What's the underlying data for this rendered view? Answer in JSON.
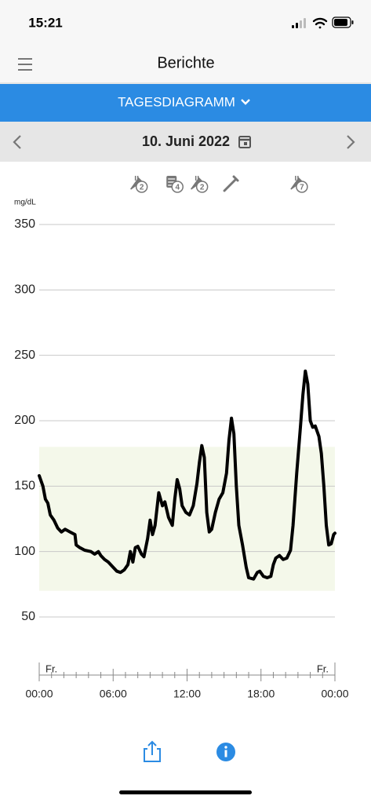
{
  "status_bar": {
    "time": "15:21"
  },
  "nav": {
    "title": "Berichte"
  },
  "view_selector": {
    "label": "TAGESDIAGRAMM"
  },
  "date_bar": {
    "date": "10. Juni 2022"
  },
  "chart_data": {
    "type": "line",
    "y_label": "mg/dL",
    "ylim": [
      50,
      350
    ],
    "yticks": [
      50,
      100,
      150,
      200,
      250,
      300,
      350
    ],
    "grid": true,
    "xlim": [
      0,
      24
    ],
    "xticks": [
      {
        "value": 0,
        "label": "00:00"
      },
      {
        "value": 6,
        "label": "06:00"
      },
      {
        "value": 12,
        "label": "12:00"
      },
      {
        "value": 18,
        "label": "18:00"
      },
      {
        "value": 24,
        "label": "00:00"
      }
    ],
    "xminor_ticks": [
      1,
      2,
      3,
      4,
      5,
      7,
      8,
      9,
      10,
      11,
      13,
      14,
      15,
      16,
      17,
      19,
      20,
      21,
      22,
      23
    ],
    "x_end_labels": [
      "Fr.",
      "Fr."
    ],
    "target_range": [
      70,
      180
    ],
    "target_color": "#f4f8ea",
    "events": [
      {
        "x": 8.0,
        "kind": "meal",
        "count": 2
      },
      {
        "x": 10.9,
        "kind": "note",
        "count": 4
      },
      {
        "x": 12.9,
        "kind": "meal",
        "count": 2
      },
      {
        "x": 15.6,
        "kind": "insulin"
      },
      {
        "x": 21.0,
        "kind": "meal",
        "count": 7
      }
    ],
    "x": [
      0.0,
      0.3,
      0.5,
      0.7,
      0.9,
      1.2,
      1.5,
      1.8,
      2.1,
      2.5,
      2.9,
      3.0,
      3.3,
      3.7,
      4.2,
      4.5,
      4.8,
      5.0,
      5.3,
      5.6,
      6.0,
      6.3,
      6.6,
      6.9,
      7.2,
      7.4,
      7.6,
      7.8,
      8.0,
      8.3,
      8.5,
      8.8,
      9.0,
      9.2,
      9.4,
      9.7,
      10.0,
      10.2,
      10.5,
      10.8,
      11.0,
      11.2,
      11.4,
      11.6,
      11.9,
      12.2,
      12.5,
      12.8,
      13.0,
      13.2,
      13.4,
      13.6,
      13.8,
      14.0,
      14.3,
      14.6,
      14.9,
      15.2,
      15.4,
      15.6,
      15.8,
      16.0,
      16.2,
      16.5,
      16.8,
      17.0,
      17.4,
      17.7,
      17.9,
      18.2,
      18.5,
      18.8,
      19.0,
      19.2,
      19.5,
      19.8,
      20.1,
      20.4,
      20.6,
      20.9,
      21.2,
      21.4,
      21.6,
      21.8,
      22.0,
      22.2,
      22.4,
      22.7,
      22.9,
      23.1,
      23.3,
      23.5,
      23.7,
      23.9,
      24.0
    ],
    "series": [
      {
        "color": "#000000",
        "values": [
          158,
          150,
          140,
          137,
          128,
          124,
          118,
          115,
          117,
          115,
          113,
          105,
          103,
          101,
          100,
          98,
          100,
          97,
          94,
          92,
          88,
          85,
          84,
          86,
          90,
          100,
          92,
          103,
          104,
          98,
          96,
          110,
          124,
          113,
          120,
          145,
          135,
          138,
          126,
          120,
          140,
          155,
          148,
          135,
          130,
          128,
          135,
          152,
          168,
          181,
          172,
          130,
          115,
          117,
          130,
          140,
          145,
          160,
          185,
          202,
          190,
          150,
          120,
          105,
          88,
          80,
          79,
          84,
          85,
          81,
          80,
          81,
          90,
          95,
          97,
          94,
          95,
          101,
          120,
          160,
          195,
          220,
          238,
          228,
          200,
          195,
          196,
          188,
          175,
          150,
          120,
          105,
          106,
          113,
          114
        ]
      }
    ]
  }
}
